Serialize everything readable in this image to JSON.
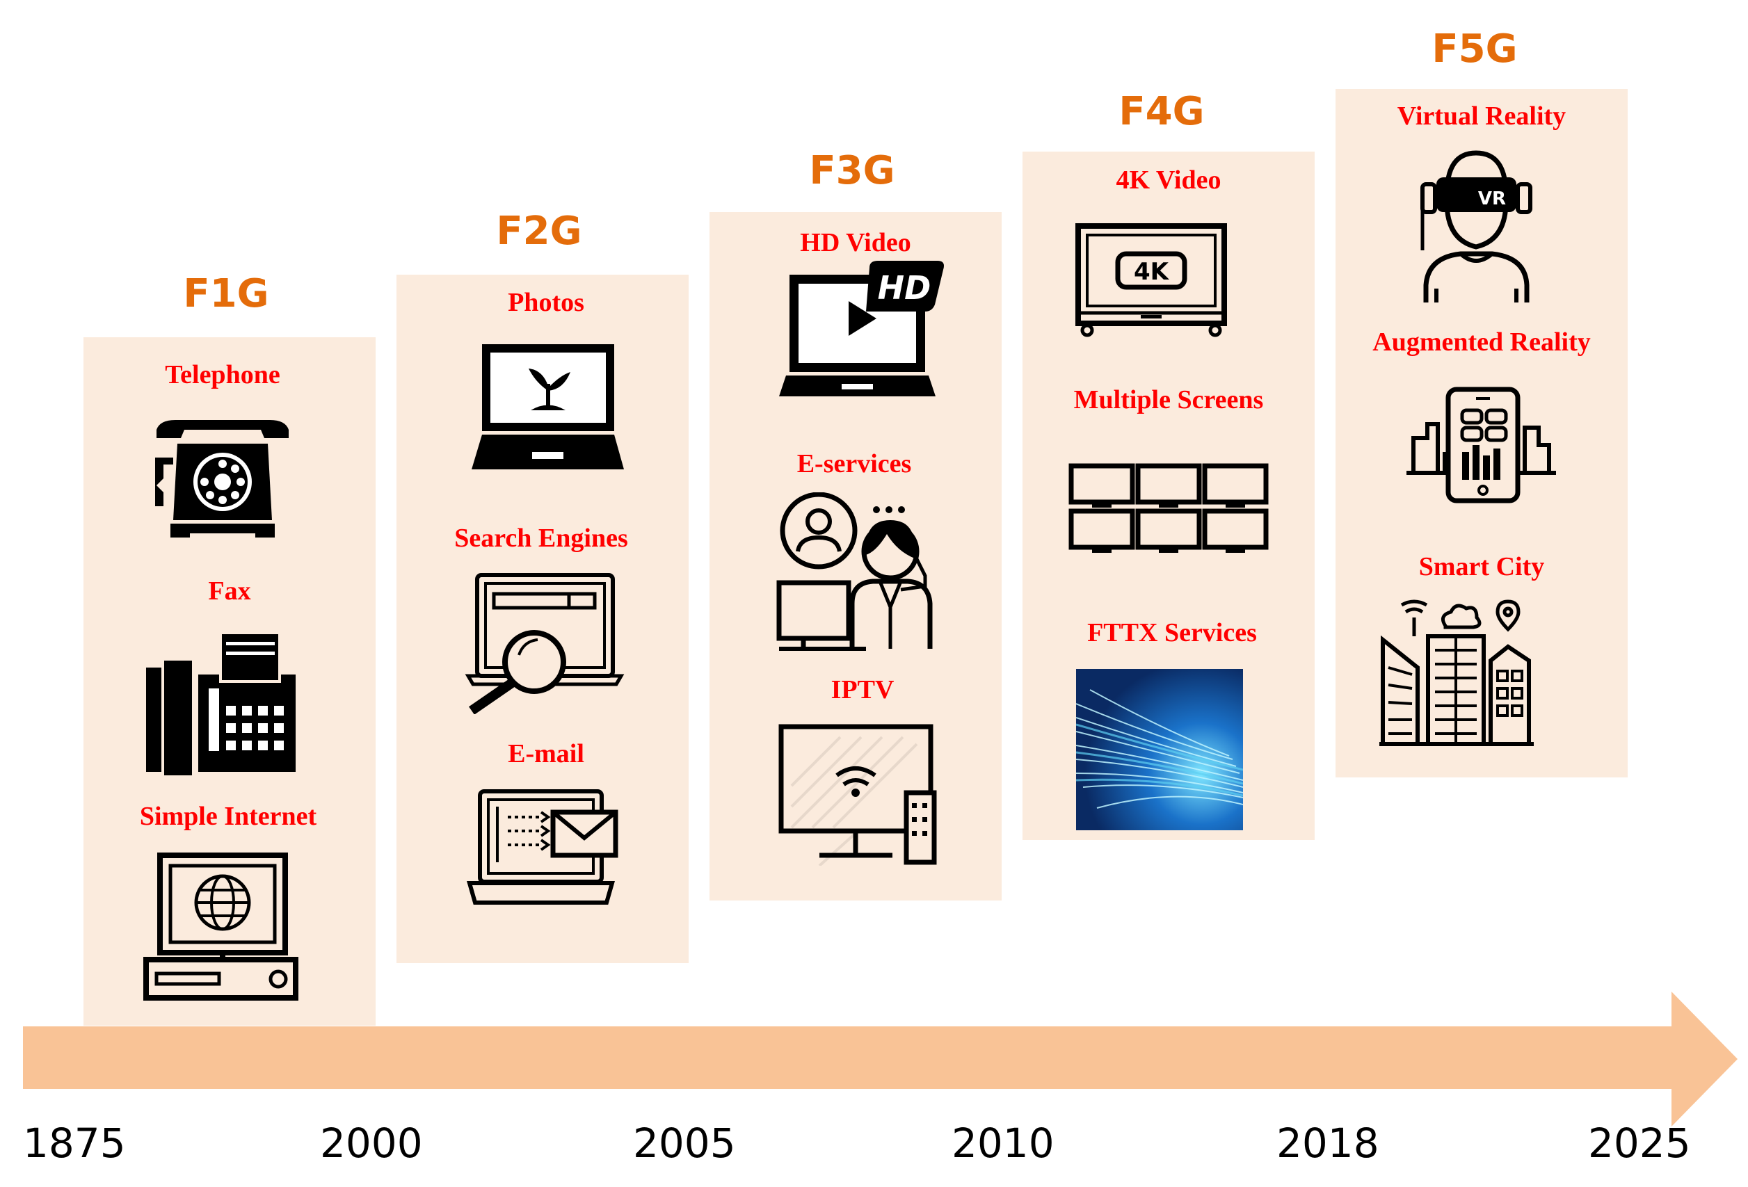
{
  "generations": [
    {
      "label": "F1G",
      "services": [
        "Telephone",
        "Fax",
        "Simple Internet"
      ]
    },
    {
      "label": "F2G",
      "services": [
        "Photos",
        "Search Engines",
        "E-mail"
      ]
    },
    {
      "label": "F3G",
      "services": [
        "HD Video",
        "E-services",
        "IPTV"
      ]
    },
    {
      "label": "F4G",
      "services": [
        "4K Video",
        "Multiple Screens",
        "FTTX Services"
      ]
    },
    {
      "label": "F5G",
      "services": [
        "Virtual Reality",
        "Augmented Reality",
        "Smart City"
      ]
    }
  ],
  "timeline": {
    "years": [
      "1875",
      "2000",
      "2005",
      "2010",
      "2018",
      "2025"
    ]
  },
  "icon_texts": {
    "hd": "HD",
    "k4": "4K",
    "vr": "VR"
  },
  "colors": {
    "generation_label": "#e46c0a",
    "service_label": "#ff0000",
    "column_bg": "#fbebdd",
    "arrow": "#f9c396"
  },
  "icons": [
    "telephone-icon",
    "fax-icon",
    "computer-globe-icon",
    "laptop-photo-icon",
    "search-engine-icon",
    "email-laptop-icon",
    "hd-video-laptop-icon",
    "e-services-icon",
    "iptv-icon",
    "4k-tv-icon",
    "multiple-screens-icon",
    "fiber-optic-image",
    "vr-headset-icon",
    "augmented-reality-icon",
    "smart-city-icon"
  ]
}
